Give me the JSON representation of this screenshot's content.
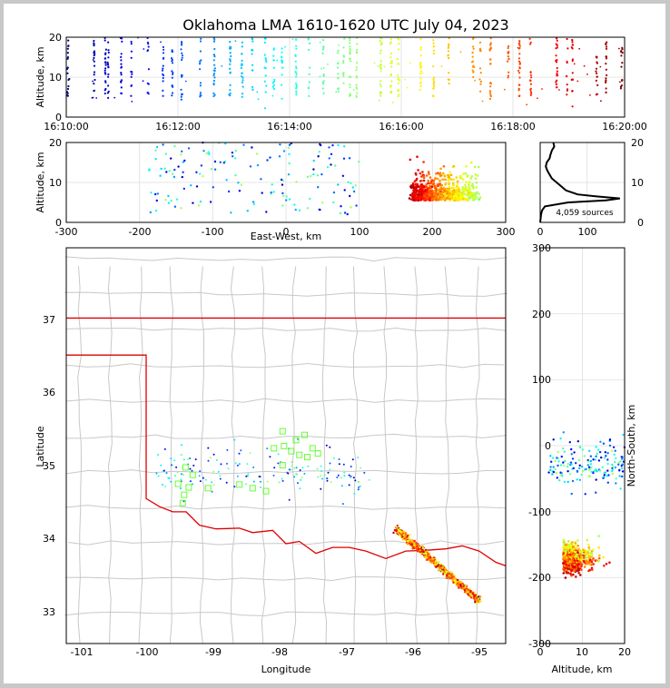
{
  "chart_data": {
    "type": "scatter",
    "title": "Oklahoma LMA 1610-1620 UTC July 04, 2023",
    "panels": {
      "time_height": {
        "ylabel": "Altitude, km",
        "ylim": [
          0,
          20
        ],
        "yticks": [
          "0",
          "10",
          "20"
        ],
        "xlim": [
          0,
          600
        ],
        "xticks": [
          "16:10:00",
          "16:12:00",
          "16:14:00",
          "16:16:00",
          "16:18:00",
          "16:20:00"
        ]
      },
      "ew_height": {
        "xlabel": "East-West, km",
        "ylabel": "Altitude, km",
        "xlim": [
          -300,
          300
        ],
        "ylim": [
          0,
          20
        ],
        "xticks": [
          "-300",
          "-200",
          "-100",
          "0",
          "100",
          "200",
          "300"
        ],
        "yticks": [
          "0",
          "10",
          "20"
        ]
      },
      "altitude_histogram": {
        "xlim": [
          0,
          180
        ],
        "ylim": [
          0,
          20
        ],
        "xticks": [
          "0",
          "100"
        ],
        "yticks": [
          "0",
          "10",
          "20"
        ],
        "annotation": "4,059 sources",
        "profile": [
          [
            0,
            0
          ],
          [
            1,
            1
          ],
          [
            2,
            2
          ],
          [
            4,
            3
          ],
          [
            10,
            4
          ],
          [
            60,
            5
          ],
          [
            140,
            5.5
          ],
          [
            170,
            6
          ],
          [
            120,
            6.5
          ],
          [
            80,
            7
          ],
          [
            55,
            8
          ],
          [
            45,
            9
          ],
          [
            35,
            10
          ],
          [
            25,
            11
          ],
          [
            20,
            12
          ],
          [
            15,
            13
          ],
          [
            12,
            14
          ],
          [
            14,
            15
          ],
          [
            20,
            16
          ],
          [
            22,
            17
          ],
          [
            25,
            18
          ],
          [
            30,
            19
          ],
          [
            28,
            20
          ]
        ]
      },
      "plan_view": {
        "xlabel": "Longitude",
        "ylabel": "Latitude",
        "xlim": [
          -101.2,
          -94.6
        ],
        "ylim": [
          32.6,
          37.95
        ],
        "xticks": [
          "-101",
          "-100",
          "-99",
          "-98",
          "-97",
          "-96",
          "-95"
        ],
        "yticks": [
          "33",
          "34",
          "35",
          "36",
          "37"
        ]
      },
      "ns_altitude": {
        "xlabel": "Altitude, km",
        "ylabel": "North-South, km",
        "xlim": [
          0,
          20
        ],
        "ylim": [
          -300,
          300
        ],
        "xticks": [
          "0",
          "10",
          "20"
        ],
        "yticks": [
          "-300",
          "-200",
          "-100",
          "0",
          "100",
          "200",
          "300"
        ]
      }
    },
    "stations": [
      [
        -97.95,
        35.47
      ],
      [
        -97.62,
        35.42
      ],
      [
        -98.08,
        35.24
      ],
      [
        -97.93,
        35.27
      ],
      [
        -97.82,
        35.2
      ],
      [
        -97.7,
        35.15
      ],
      [
        -97.5,
        35.24
      ],
      [
        -97.42,
        35.17
      ],
      [
        -97.58,
        35.12
      ],
      [
        -97.95,
        35.01
      ],
      [
        -98.6,
        34.75
      ],
      [
        -98.4,
        34.7
      ],
      [
        -98.2,
        34.66
      ],
      [
        -99.41,
        34.98
      ],
      [
        -99.3,
        34.88
      ],
      [
        -99.43,
        34.61
      ],
      [
        -99.52,
        34.76
      ],
      [
        -99.36,
        34.71
      ],
      [
        -99.07,
        34.7
      ],
      [
        -97.75,
        35.35
      ],
      [
        -99.45,
        34.5
      ]
    ],
    "colormap": [
      "#000080",
      "#0000ff",
      "#0080ff",
      "#00ffff",
      "#80ff80",
      "#ffff00",
      "#ff8000",
      "#ff0000",
      "#800000"
    ],
    "border_color": "#e00000"
  }
}
